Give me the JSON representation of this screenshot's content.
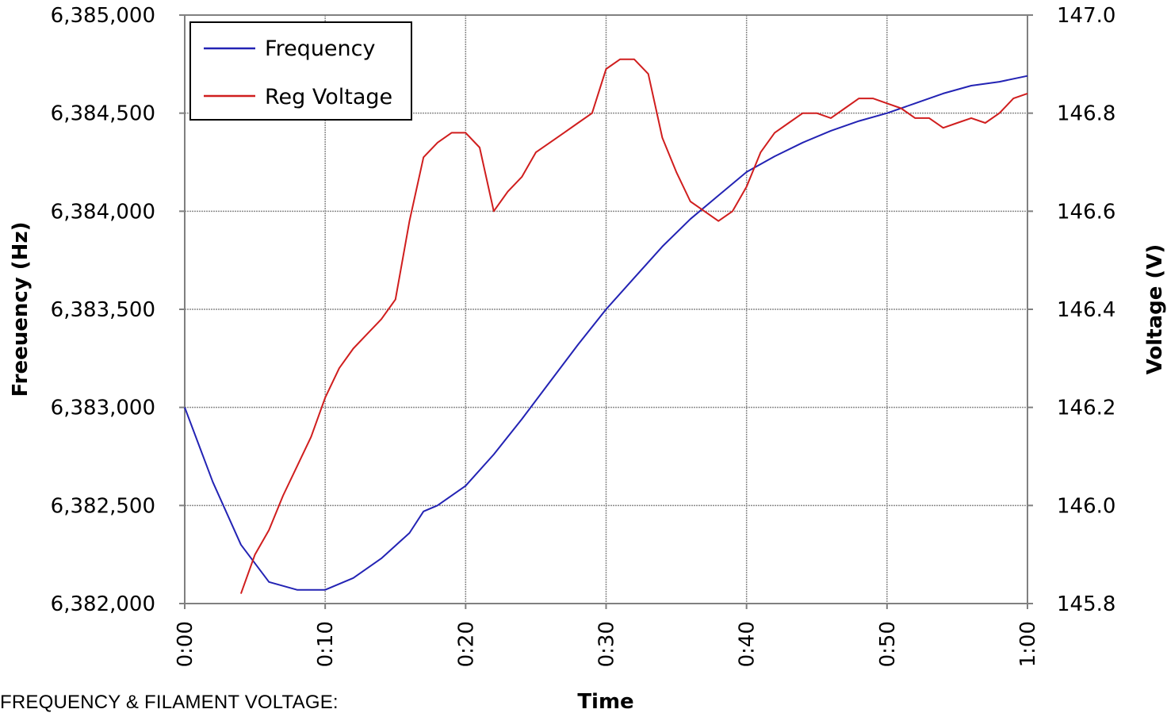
{
  "chart_data": {
    "type": "line",
    "xlabel": "Time",
    "ylabel": "Freeuency (Hz)",
    "ylabel_right": "Voltage (V)",
    "x_ticks": [
      "0:00",
      "0:10",
      "0:20",
      "0:30",
      "0:40",
      "0:50",
      "1:00"
    ],
    "xlim_seconds": [
      0,
      60
    ],
    "ylim": [
      6382000,
      6385000
    ],
    "ylim_right": [
      145.8,
      147.0
    ],
    "y_ticks": [
      "6,382,000",
      "6,382,500",
      "6,383,000",
      "6,383,500",
      "6,384,000",
      "6,384,500",
      "6,385,000"
    ],
    "y_ticks_right": [
      "145.8",
      "146.0",
      "146.2",
      "146.4",
      "146.6",
      "146.8",
      "147.0"
    ],
    "grid": true,
    "legend_position": "top-left",
    "series": [
      {
        "name": "Frequency",
        "axis": "left",
        "color": "#2323b4",
        "x_seconds": [
          0,
          2,
          4,
          6,
          8,
          10,
          12,
          14,
          16,
          17,
          18,
          20,
          22,
          24,
          26,
          28,
          30,
          32,
          34,
          36,
          38,
          40,
          42,
          44,
          46,
          48,
          50,
          52,
          54,
          56,
          58,
          60
        ],
        "values": [
          6383000,
          6382620,
          6382300,
          6382110,
          6382070,
          6382070,
          6382130,
          6382230,
          6382360,
          6382470,
          6382500,
          6382600,
          6382760,
          6382940,
          6383130,
          6383320,
          6383500,
          6383660,
          6383820,
          6383960,
          6384080,
          6384200,
          6384280,
          6384350,
          6384410,
          6384460,
          6384500,
          6384550,
          6384600,
          6384640,
          6384660,
          6384690
        ]
      },
      {
        "name": "Reg Voltage",
        "axis": "right",
        "color": "#d01e1e",
        "x_seconds": [
          4,
          5,
          6,
          7,
          8,
          9,
          10,
          11,
          12,
          13,
          14,
          15,
          16,
          17,
          18,
          19,
          20,
          21,
          22,
          23,
          24,
          25,
          26,
          27,
          28,
          29,
          30,
          31,
          32,
          33,
          34,
          35,
          36,
          37,
          38,
          39,
          40,
          41,
          42,
          43,
          44,
          45,
          46,
          47,
          48,
          49,
          50,
          51,
          52,
          53,
          54,
          55,
          56,
          57,
          58,
          59,
          60
        ],
        "values": [
          145.82,
          145.9,
          145.95,
          146.02,
          146.08,
          146.14,
          146.22,
          146.28,
          146.32,
          146.35,
          146.38,
          146.42,
          146.58,
          146.71,
          146.74,
          146.76,
          146.76,
          146.73,
          146.6,
          146.64,
          146.67,
          146.72,
          146.74,
          146.76,
          146.78,
          146.8,
          146.89,
          146.91,
          146.91,
          146.88,
          146.75,
          146.68,
          146.62,
          146.6,
          146.58,
          146.6,
          146.65,
          146.72,
          146.76,
          146.78,
          146.8,
          146.8,
          146.79,
          146.81,
          146.83,
          146.83,
          146.82,
          146.81,
          146.79,
          146.79,
          146.77,
          146.78,
          146.79,
          146.78,
          146.8,
          146.83,
          146.84
        ]
      }
    ]
  },
  "caption": "FREQUENCY & FILAMENT VOLTAGE: "
}
